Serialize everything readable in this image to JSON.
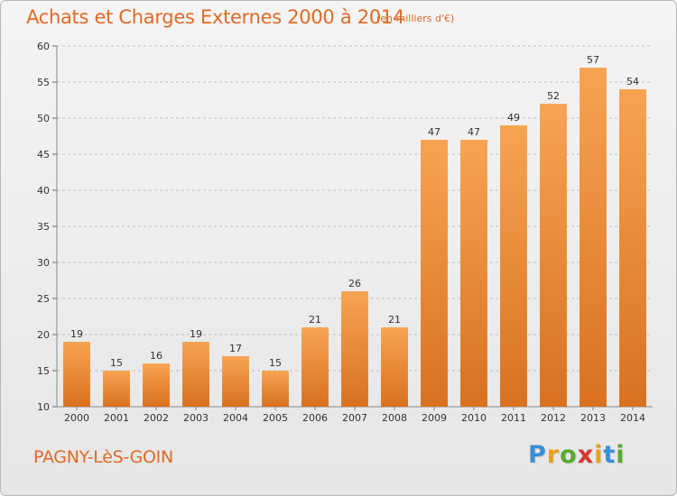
{
  "header": {
    "title": "Achats et Charges Externes 2000 à 2014",
    "subtitle": "(en milliers d'€)"
  },
  "footer": {
    "place": "PAGNY-LèS-GOIN",
    "logo_letters": [
      "P",
      "r",
      "o",
      "x",
      "i",
      "t",
      "i"
    ],
    "logo_colors": [
      "#3a8fd6",
      "#e8a11c",
      "#5aaa32",
      "#d8362c",
      "#e8a11c",
      "#3a8fd6",
      "#5aaa32"
    ]
  },
  "colors": {
    "bar_light": "#f7a452",
    "bar_dark": "#d9711f",
    "title": "#e06a27",
    "axis_text": "#333333",
    "grid": "#bfbfbf"
  },
  "chart_data": {
    "type": "bar",
    "title": "Achats et Charges Externes 2000 à 2014",
    "subtitle": "(en milliers d'€)",
    "categories": [
      "2000",
      "2001",
      "2002",
      "2003",
      "2004",
      "2005",
      "2006",
      "2007",
      "2008",
      "2009",
      "2010",
      "2011",
      "2012",
      "2013",
      "2014"
    ],
    "values": [
      19,
      15,
      16,
      19,
      17,
      15,
      21,
      26,
      21,
      47,
      47,
      49,
      52,
      57,
      54
    ],
    "ylim": [
      10,
      60
    ],
    "yticks": [
      10,
      15,
      20,
      25,
      30,
      35,
      40,
      45,
      50,
      55,
      60
    ],
    "grid": true,
    "data_labels": true
  }
}
